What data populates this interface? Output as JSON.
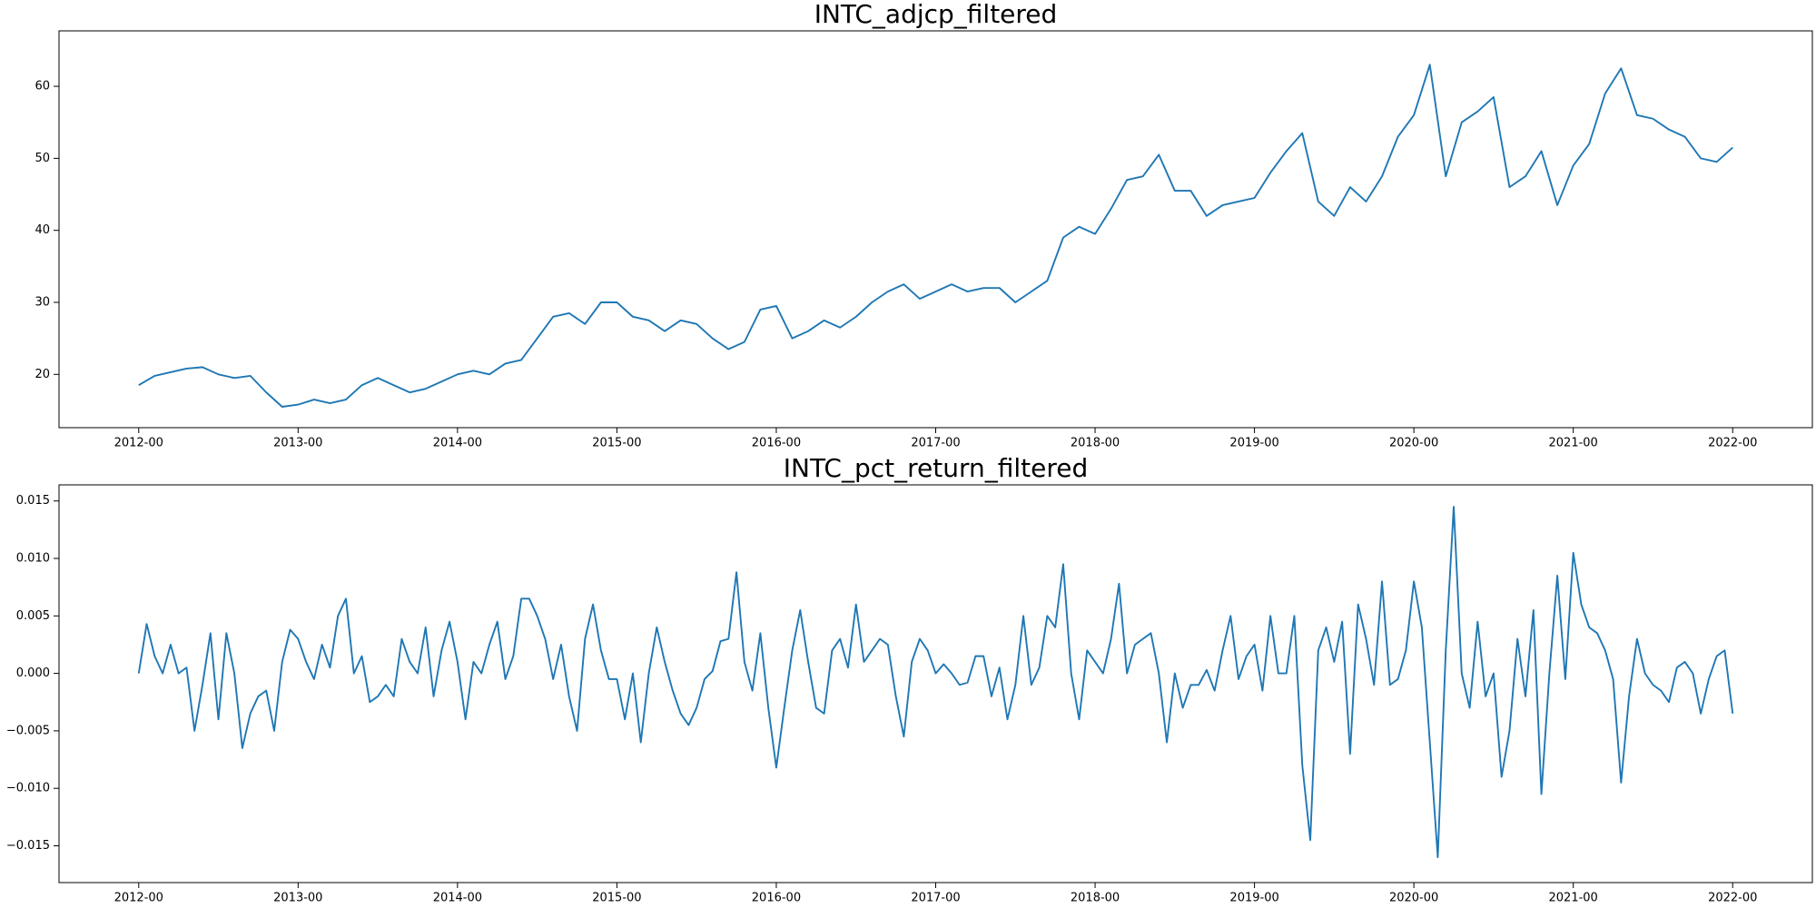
{
  "chart_data": [
    {
      "type": "line",
      "title": "INTC_adjcp_filtered",
      "xlim": [
        2011.5,
        2022.5
      ],
      "xticks": [
        {
          "value": 2012,
          "label": "2012-00"
        },
        {
          "value": 2013,
          "label": "2013-00"
        },
        {
          "value": 2014,
          "label": "2014-00"
        },
        {
          "value": 2015,
          "label": "2015-00"
        },
        {
          "value": 2016,
          "label": "2016-00"
        },
        {
          "value": 2017,
          "label": "2017-00"
        },
        {
          "value": 2018,
          "label": "2018-00"
        },
        {
          "value": 2019,
          "label": "2019-00"
        },
        {
          "value": 2020,
          "label": "2020-00"
        },
        {
          "value": 2021,
          "label": "2021-00"
        },
        {
          "value": 2022,
          "label": "2022-00"
        }
      ],
      "ylim": [
        12.6,
        67.7
      ],
      "yticks": [
        20,
        30,
        40,
        50,
        60
      ],
      "x": [
        2012,
        2012.1,
        2012.2,
        2012.3,
        2012.4,
        2012.5,
        2012.6,
        2012.7,
        2012.8,
        2012.9,
        2013,
        2013.1,
        2013.2,
        2013.3,
        2013.4,
        2013.5,
        2013.6,
        2013.7,
        2013.8,
        2013.9,
        2014,
        2014.1,
        2014.2,
        2014.3,
        2014.4,
        2014.5,
        2014.6,
        2014.7,
        2014.8,
        2014.9,
        2015,
        2015.1,
        2015.2,
        2015.3,
        2015.4,
        2015.5,
        2015.6,
        2015.7,
        2015.8,
        2015.9,
        2016,
        2016.1,
        2016.2,
        2016.3,
        2016.4,
        2016.5,
        2016.6,
        2016.7,
        2016.8,
        2016.9,
        2017,
        2017.1,
        2017.2,
        2017.3,
        2017.4,
        2017.5,
        2017.6,
        2017.7,
        2017.8,
        2017.9,
        2018,
        2018.1,
        2018.2,
        2018.3,
        2018.4,
        2018.5,
        2018.6,
        2018.7,
        2018.8,
        2018.9,
        2019,
        2019.1,
        2019.2,
        2019.3,
        2019.4,
        2019.5,
        2019.6,
        2019.7,
        2019.8,
        2019.9,
        2020,
        2020.1,
        2020.2,
        2020.3,
        2020.4,
        2020.5,
        2020.6,
        2020.7,
        2020.8,
        2020.9,
        2021,
        2021.1,
        2021.2,
        2021.3,
        2021.4,
        2021.5,
        2021.6,
        2021.7,
        2021.8,
        2021.9,
        2022
      ],
      "series": [
        {
          "color": "#1f77b4",
          "values": [
            18.5,
            19.8,
            20.3,
            20.8,
            21.0,
            20.0,
            19.5,
            19.8,
            17.5,
            15.5,
            15.8,
            16.5,
            16.0,
            16.5,
            18.5,
            19.5,
            18.5,
            17.5,
            18.0,
            19.0,
            20.0,
            20.5,
            20.0,
            21.5,
            22.0,
            25.0,
            28.0,
            28.5,
            27.0,
            30.0,
            30.0,
            28.0,
            27.5,
            26.0,
            27.5,
            27.0,
            25.0,
            23.5,
            24.5,
            29.0,
            29.5,
            25.0,
            26.0,
            27.5,
            26.5,
            28.0,
            30.0,
            31.5,
            32.5,
            30.5,
            31.5,
            32.5,
            31.5,
            32.0,
            32.0,
            30.0,
            31.5,
            33.0,
            39.0,
            40.5,
            39.5,
            43.0,
            47.0,
            47.5,
            50.5,
            45.5,
            45.5,
            42.0,
            43.5,
            44.0,
            44.5,
            48.0,
            51.0,
            53.5,
            44.0,
            42.0,
            46.0,
            44.0,
            47.5,
            53.0,
            56.0,
            63.0,
            47.5,
            55.0,
            56.5,
            58.5,
            46.0,
            47.5,
            51.0,
            43.5,
            49.0,
            52.0,
            59.0,
            62.5,
            56.0,
            55.5,
            54.0,
            53.0,
            50.0,
            49.5,
            51.5
          ]
        }
      ]
    },
    {
      "type": "line",
      "title": "INTC_pct_return_filtered",
      "xlim": [
        2011.5,
        2022.5
      ],
      "xticks": [
        {
          "value": 2012,
          "label": "2012-00"
        },
        {
          "value": 2013,
          "label": "2013-00"
        },
        {
          "value": 2014,
          "label": "2014-00"
        },
        {
          "value": 2015,
          "label": "2015-00"
        },
        {
          "value": 2016,
          "label": "2016-00"
        },
        {
          "value": 2017,
          "label": "2017-00"
        },
        {
          "value": 2018,
          "label": "2018-00"
        },
        {
          "value": 2019,
          "label": "2019-00"
        },
        {
          "value": 2020,
          "label": "2020-00"
        },
        {
          "value": 2021,
          "label": "2021-00"
        },
        {
          "value": 2022,
          "label": "2022-00"
        }
      ],
      "ylim": [
        -0.0182,
        0.0164
      ],
      "yticks": [
        {
          "value": -0.015,
          "label": "−0.015"
        },
        {
          "value": -0.01,
          "label": "−0.010"
        },
        {
          "value": -0.005,
          "label": "−0.005"
        },
        {
          "value": 0,
          "label": "0.000"
        },
        0.005,
        {
          "value": 0.01,
          "label": "0.010"
        },
        0.015
      ],
      "x": [
        2012,
        2012.05,
        2012.1,
        2012.15,
        2012.2,
        2012.25,
        2012.3,
        2012.35,
        2012.4,
        2012.45,
        2012.5,
        2012.55,
        2012.6,
        2012.65,
        2012.7,
        2012.75,
        2012.8,
        2012.85,
        2012.9,
        2012.95,
        2013,
        2013.05,
        2013.1,
        2013.15,
        2013.2,
        2013.25,
        2013.3,
        2013.35,
        2013.4,
        2013.45,
        2013.5,
        2013.55,
        2013.6,
        2013.65,
        2013.7,
        2013.75,
        2013.8,
        2013.85,
        2013.9,
        2013.95,
        2014,
        2014.05,
        2014.1,
        2014.15,
        2014.2,
        2014.25,
        2014.3,
        2014.35,
        2014.4,
        2014.45,
        2014.5,
        2014.55,
        2014.6,
        2014.65,
        2014.7,
        2014.75,
        2014.8,
        2014.85,
        2014.9,
        2014.95,
        2015,
        2015.05,
        2015.1,
        2015.15,
        2015.2,
        2015.25,
        2015.3,
        2015.35,
        2015.4,
        2015.45,
        2015.5,
        2015.55,
        2015.6,
        2015.65,
        2015.7,
        2015.75,
        2015.8,
        2015.85,
        2015.9,
        2015.95,
        2016,
        2016.05,
        2016.1,
        2016.15,
        2016.2,
        2016.25,
        2016.3,
        2016.35,
        2016.4,
        2016.45,
        2016.5,
        2016.55,
        2016.6,
        2016.65,
        2016.7,
        2016.75,
        2016.8,
        2016.85,
        2016.9,
        2016.95,
        2017,
        2017.05,
        2017.1,
        2017.15,
        2017.2,
        2017.25,
        2017.3,
        2017.35,
        2017.4,
        2017.45,
        2017.5,
        2017.55,
        2017.6,
        2017.65,
        2017.7,
        2017.75,
        2017.8,
        2017.85,
        2017.9,
        2017.95,
        2018,
        2018.05,
        2018.1,
        2018.15,
        2018.2,
        2018.25,
        2018.3,
        2018.35,
        2018.4,
        2018.45,
        2018.5,
        2018.55,
        2018.6,
        2018.65,
        2018.7,
        2018.75,
        2018.8,
        2018.85,
        2018.9,
        2018.95,
        2019,
        2019.05,
        2019.1,
        2019.15,
        2019.2,
        2019.25,
        2019.3,
        2019.35,
        2019.4,
        2019.45,
        2019.5,
        2019.55,
        2019.6,
        2019.65,
        2019.7,
        2019.75,
        2019.8,
        2019.85,
        2019.9,
        2019.95,
        2020,
        2020.05,
        2020.1,
        2020.15,
        2020.2,
        2020.25,
        2020.3,
        2020.35,
        2020.4,
        2020.45,
        2020.5,
        2020.55,
        2020.6,
        2020.65,
        2020.7,
        2020.75,
        2020.8,
        2020.85,
        2020.9,
        2020.95,
        2021,
        2021.05,
        2021.1,
        2021.15,
        2021.2,
        2021.25,
        2021.3,
        2021.35,
        2021.4,
        2021.45,
        2021.5,
        2021.55,
        2021.6,
        2021.65,
        2021.7,
        2021.75,
        2021.8,
        2021.85,
        2021.9,
        2021.95,
        2022
      ],
      "series": [
        {
          "color": "#1f77b4",
          "values": [
            0,
            0.0043,
            0.0015,
            0,
            0.0025,
            0,
            0.0005,
            -0.005,
            -0.001,
            0.0035,
            -0.004,
            0.0035,
            0,
            -0.0065,
            -0.0035,
            -0.002,
            -0.0015,
            -0.005,
            0.001,
            0.0038,
            0.003,
            0.001,
            -0.0005,
            0.0025,
            0.0005,
            0.005,
            0.0065,
            0,
            0.0015,
            -0.0025,
            -0.002,
            -0.001,
            -0.002,
            0.003,
            0.001,
            0,
            0.004,
            -0.002,
            0.002,
            0.0045,
            0.001,
            -0.004,
            0.001,
            0,
            0.0025,
            0.0045,
            -0.0005,
            0.0015,
            0.0065,
            0.0065,
            0.005,
            0.003,
            -0.0005,
            0.0025,
            -0.002,
            -0.005,
            0.003,
            0.006,
            0.002,
            -0.0005,
            -0.0005,
            -0.004,
            0,
            -0.006,
            0,
            0.004,
            0.001,
            -0.0015,
            -0.0035,
            -0.0045,
            -0.003,
            -0.0005,
            0.0002,
            0.0028,
            0.003,
            0.0088,
            0.001,
            -0.0015,
            0.0035,
            -0.003,
            -0.0082,
            -0.003,
            0.002,
            0.0055,
            0.001,
            -0.003,
            -0.0035,
            0.002,
            0.003,
            0.0005,
            0.006,
            0.001,
            0.002,
            0.003,
            0.0025,
            -0.002,
            -0.0055,
            0.001,
            0.003,
            0.002,
            0,
            0.0008,
            0,
            -0.001,
            -0.0008,
            0.0015,
            0.0015,
            -0.002,
            0.0005,
            -0.004,
            -0.001,
            0.005,
            -0.001,
            0.0005,
            0.005,
            0.004,
            0.0095,
            0,
            -0.004,
            0.002,
            0.001,
            0,
            0.003,
            0.0078,
            0,
            0.0025,
            0.003,
            0.0035,
            0,
            -0.006,
            0,
            -0.003,
            -0.001,
            -0.001,
            0.0003,
            -0.0015,
            0.002,
            0.005,
            -0.0005,
            0.0015,
            0.0025,
            -0.0015,
            0.005,
            0,
            0,
            0.005,
            -0.008,
            -0.0145,
            0.002,
            0.004,
            0.001,
            0.0045,
            -0.007,
            0.006,
            0.003,
            -0.001,
            0.008,
            -0.001,
            -0.0005,
            0.002,
            0.008,
            0.004,
            -0.006,
            -0.016,
            0.002,
            0.0145,
            0,
            -0.003,
            0.0045,
            -0.002,
            0,
            -0.009,
            -0.005,
            0.003,
            -0.002,
            0.0055,
            -0.0105,
            0,
            0.0085,
            -0.0005,
            0.0105,
            0.006,
            0.004,
            0.0035,
            0.002,
            -0.0005,
            -0.0095,
            -0.002,
            0.003,
            0,
            -0.001,
            -0.0015,
            -0.0025,
            0.0005,
            0.001,
            0,
            -0.0035,
            -0.0005,
            0.0015,
            0.002,
            -0.0035
          ]
        }
      ]
    }
  ]
}
